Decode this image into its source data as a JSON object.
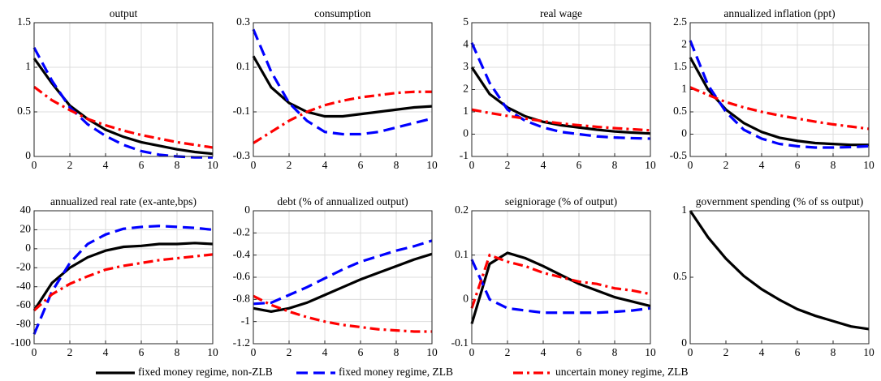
{
  "legend": [
    {
      "name": "fixed money regime, non-ZLB",
      "color": "#000000",
      "dash": "solid"
    },
    {
      "name": "fixed money regime, ZLB",
      "color": "#0000ff",
      "dash": "dashed"
    },
    {
      "name": "uncertain money regime, ZLB",
      "color": "#ff0000",
      "dash": "dashdot"
    }
  ],
  "chart_data": [
    {
      "type": "line",
      "title": "output",
      "x": [
        0,
        1,
        2,
        3,
        4,
        5,
        6,
        7,
        8,
        9,
        10
      ],
      "xlim": [
        0,
        10
      ],
      "xticks": [
        0,
        2,
        4,
        6,
        8,
        10
      ],
      "ylim": [
        0,
        1.5
      ],
      "yticks": [
        0,
        0.5,
        1,
        1.5
      ],
      "grid": true,
      "series": [
        {
          "values": [
            1.1,
            0.82,
            0.57,
            0.42,
            0.3,
            0.22,
            0.16,
            0.12,
            0.08,
            0.05,
            0.03
          ]
        },
        {
          "values": [
            1.22,
            0.85,
            0.55,
            0.36,
            0.23,
            0.13,
            0.06,
            0.02,
            0,
            -0.01,
            -0.01
          ]
        },
        {
          "values": [
            0.78,
            0.63,
            0.52,
            0.42,
            0.35,
            0.29,
            0.24,
            0.2,
            0.16,
            0.13,
            0.1
          ]
        }
      ]
    },
    {
      "type": "line",
      "title": "consumption",
      "x": [
        0,
        1,
        2,
        3,
        4,
        5,
        6,
        7,
        8,
        9,
        10
      ],
      "xlim": [
        0,
        10
      ],
      "xticks": [
        0,
        2,
        4,
        6,
        8,
        10
      ],
      "ylim": [
        -0.3,
        0.3
      ],
      "yticks": [
        -0.3,
        -0.1,
        0.1,
        0.3
      ],
      "grid": true,
      "series": [
        {
          "values": [
            0.15,
            0.01,
            -0.06,
            -0.1,
            -0.12,
            -0.12,
            -0.11,
            -0.1,
            -0.09,
            -0.08,
            -0.075
          ]
        },
        {
          "values": [
            0.27,
            0.08,
            -0.06,
            -0.14,
            -0.19,
            -0.2,
            -0.2,
            -0.19,
            -0.17,
            -0.15,
            -0.13
          ]
        },
        {
          "values": [
            -0.24,
            -0.19,
            -0.14,
            -0.1,
            -0.07,
            -0.05,
            -0.035,
            -0.025,
            -0.015,
            -0.01,
            -0.01
          ]
        }
      ]
    },
    {
      "type": "line",
      "title": "real wage",
      "x": [
        0,
        1,
        2,
        3,
        4,
        5,
        6,
        7,
        8,
        9,
        10
      ],
      "xlim": [
        0,
        10
      ],
      "xticks": [
        0,
        2,
        4,
        6,
        8,
        10
      ],
      "ylim": [
        -1,
        5
      ],
      "yticks": [
        -1,
        0,
        1,
        2,
        3,
        4,
        5
      ],
      "grid": true,
      "series": [
        {
          "values": [
            3,
            1.8,
            1.2,
            0.8,
            0.55,
            0.4,
            0.3,
            0.2,
            0.12,
            0.07,
            0.03
          ]
        },
        {
          "values": [
            4.1,
            2.3,
            1.1,
            0.6,
            0.3,
            0.1,
            0,
            -0.1,
            -0.15,
            -0.18,
            -0.2
          ]
        },
        {
          "values": [
            1.1,
            0.95,
            0.82,
            0.7,
            0.58,
            0.48,
            0.4,
            0.33,
            0.27,
            0.22,
            0.17
          ]
        }
      ]
    },
    {
      "type": "line",
      "title": "annualized inflation (ppt)",
      "x": [
        0,
        1,
        2,
        3,
        4,
        5,
        6,
        7,
        8,
        9,
        10
      ],
      "xlim": [
        0,
        10
      ],
      "xticks": [
        0,
        2,
        4,
        6,
        8,
        10
      ],
      "ylim": [
        -0.5,
        2.5
      ],
      "yticks": [
        -0.5,
        0,
        0.5,
        1,
        1.5,
        2,
        2.5
      ],
      "grid": true,
      "series": [
        {
          "values": [
            1.72,
            1.0,
            0.55,
            0.25,
            0.05,
            -0.08,
            -0.15,
            -0.2,
            -0.22,
            -0.24,
            -0.24
          ]
        },
        {
          "values": [
            2.1,
            1.1,
            0.5,
            0.1,
            -0.1,
            -0.22,
            -0.27,
            -0.3,
            -0.3,
            -0.29,
            -0.27
          ]
        },
        {
          "values": [
            1.05,
            0.88,
            0.72,
            0.6,
            0.5,
            0.42,
            0.35,
            0.28,
            0.22,
            0.17,
            0.12
          ]
        }
      ]
    },
    {
      "type": "line",
      "title": "annualized real rate (ex-ante,bps)",
      "x": [
        0,
        1,
        2,
        3,
        4,
        5,
        6,
        7,
        8,
        9,
        10
      ],
      "xlim": [
        0,
        10
      ],
      "xticks": [
        0,
        2,
        4,
        6,
        8,
        10
      ],
      "ylim": [
        -100,
        40
      ],
      "yticks": [
        -100,
        -80,
        -60,
        -40,
        -20,
        0,
        20,
        40
      ],
      "grid": true,
      "series": [
        {
          "values": [
            -65,
            -36,
            -20,
            -9,
            -2,
            2,
            3,
            5,
            5,
            6,
            5
          ]
        },
        {
          "values": [
            -90,
            -45,
            -15,
            5,
            15,
            21,
            23,
            24,
            23,
            22,
            20
          ]
        },
        {
          "values": [
            -65,
            -48,
            -37,
            -29,
            -22,
            -18,
            -15,
            -12,
            -10,
            -8,
            -6
          ]
        }
      ]
    },
    {
      "type": "line",
      "title": "debt (% of annualized output)",
      "x": [
        0,
        1,
        2,
        3,
        4,
        5,
        6,
        7,
        8,
        9,
        10
      ],
      "xlim": [
        0,
        10
      ],
      "xticks": [
        0,
        2,
        4,
        6,
        8,
        10
      ],
      "ylim": [
        -1.2,
        0
      ],
      "yticks": [
        -1.2,
        -1,
        -0.8,
        -0.6,
        -0.4,
        -0.2,
        0
      ],
      "grid": true,
      "series": [
        {
          "values": [
            -0.88,
            -0.91,
            -0.88,
            -0.83,
            -0.76,
            -0.69,
            -0.62,
            -0.56,
            -0.5,
            -0.44,
            -0.39
          ]
        },
        {
          "values": [
            -0.84,
            -0.83,
            -0.76,
            -0.69,
            -0.61,
            -0.53,
            -0.46,
            -0.41,
            -0.36,
            -0.32,
            -0.27
          ]
        },
        {
          "values": [
            -0.77,
            -0.85,
            -0.91,
            -0.96,
            -1.0,
            -1.03,
            -1.05,
            -1.07,
            -1.08,
            -1.09,
            -1.09
          ]
        }
      ]
    },
    {
      "type": "line",
      "title": "seigniorage (% of output)",
      "x": [
        0,
        1,
        2,
        3,
        4,
        5,
        6,
        7,
        8,
        9,
        10
      ],
      "xlim": [
        0,
        10
      ],
      "xticks": [
        0,
        2,
        4,
        6,
        8,
        10
      ],
      "ylim": [
        -0.1,
        0.2
      ],
      "yticks": [
        -0.1,
        0,
        0.1,
        0.2
      ],
      "grid": true,
      "series": [
        {
          "values": [
            -0.055,
            0.08,
            0.105,
            0.093,
            0.075,
            0.055,
            0.035,
            0.02,
            0.005,
            -0.005,
            -0.015
          ]
        },
        {
          "values": [
            0.09,
            0.0,
            -0.02,
            -0.025,
            -0.03,
            -0.03,
            -0.03,
            -0.03,
            -0.028,
            -0.025,
            -0.02
          ]
        },
        {
          "values": [
            -0.02,
            0.1,
            0.085,
            0.075,
            0.06,
            0.05,
            0.04,
            0.035,
            0.025,
            0.02,
            0.012
          ]
        }
      ]
    },
    {
      "type": "line",
      "title": "government spending (% of ss output)",
      "x": [
        0,
        1,
        2,
        3,
        4,
        5,
        6,
        7,
        8,
        9,
        10
      ],
      "xlim": [
        0,
        10
      ],
      "xticks": [
        0,
        2,
        4,
        6,
        8,
        10
      ],
      "ylim": [
        0,
        1
      ],
      "yticks": [
        0,
        0.5,
        1
      ],
      "grid": false,
      "series": [
        {
          "values": [
            1,
            0.8,
            0.64,
            0.51,
            0.41,
            0.33,
            0.26,
            0.21,
            0.17,
            0.13,
            0.11
          ]
        }
      ]
    }
  ]
}
